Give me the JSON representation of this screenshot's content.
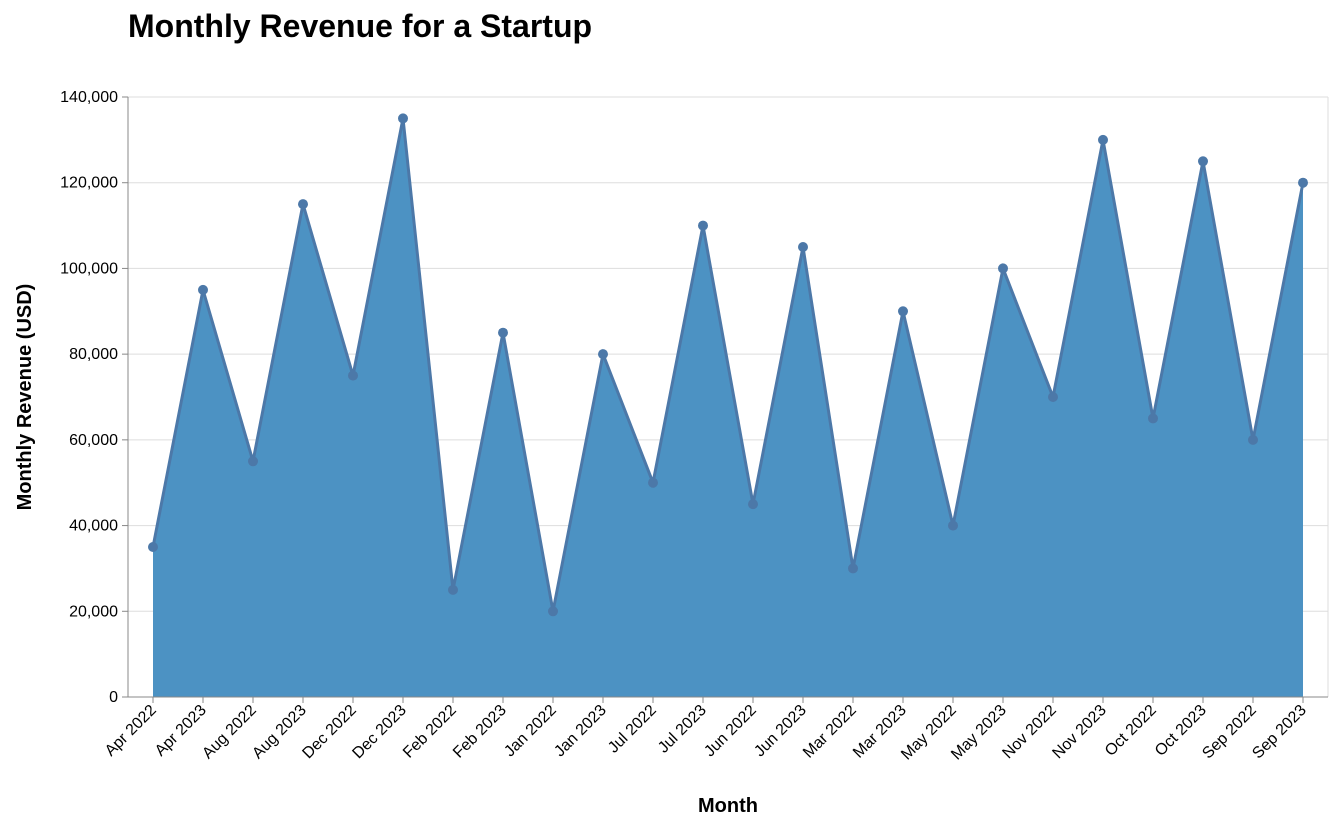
{
  "chart_data": {
    "type": "area",
    "title": "Monthly Revenue for a Startup",
    "xlabel": "Month",
    "ylabel": "Monthly Revenue (USD)",
    "ylim": [
      0,
      140000
    ],
    "yticks": [
      0,
      20000,
      40000,
      60000,
      80000,
      100000,
      120000,
      140000
    ],
    "ytick_labels": [
      "0",
      "20,000",
      "40,000",
      "60,000",
      "80,000",
      "100,000",
      "120,000",
      "140,000"
    ],
    "grid": true,
    "categories": [
      "Apr 2022",
      "Apr 2023",
      "Aug 2022",
      "Aug 2023",
      "Dec 2022",
      "Dec 2023",
      "Feb 2022",
      "Feb 2023",
      "Jan 2022",
      "Jan 2023",
      "Jul 2022",
      "Jul 2023",
      "Jun 2022",
      "Jun 2023",
      "Mar 2022",
      "Mar 2023",
      "May 2022",
      "May 2023",
      "Nov 2022",
      "Nov 2023",
      "Oct 2022",
      "Oct 2023",
      "Sep 2022",
      "Sep 2023"
    ],
    "values": [
      35000,
      95000,
      55000,
      115000,
      75000,
      135000,
      25000,
      85000,
      20000,
      80000,
      50000,
      110000,
      45000,
      105000,
      30000,
      90000,
      40000,
      100000,
      70000,
      130000,
      65000,
      125000,
      60000,
      120000
    ],
    "colors": {
      "fill": "#4c92c3",
      "line": "#4c78a8",
      "point": "#4c78a8"
    }
  }
}
